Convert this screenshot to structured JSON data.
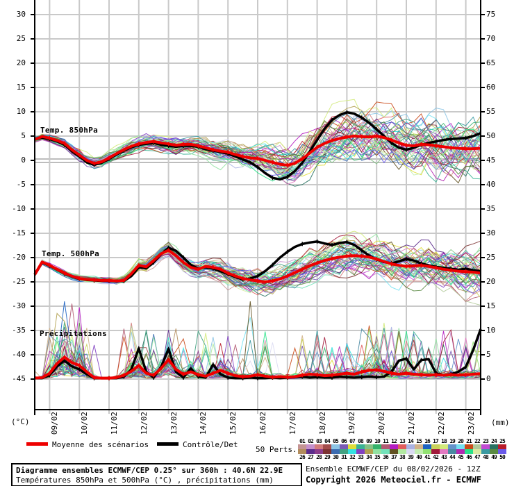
{
  "axes": {
    "unit_left": "(°C)",
    "unit_right": "(mm)",
    "left_ticks": [
      "30",
      "25",
      "20",
      "15",
      "10",
      "5",
      "0",
      "-5",
      "-10",
      "-15",
      "-20",
      "-25",
      "-30",
      "-35",
      "-40",
      "-45"
    ],
    "right_ticks": [
      "75",
      "70",
      "65",
      "60",
      "55",
      "50",
      "45",
      "40",
      "35",
      "30",
      "25",
      "20",
      "15",
      "10",
      "5",
      "0"
    ],
    "x_labels": [
      "09/02",
      "10/02",
      "11/02",
      "12/02",
      "13/02",
      "14/02",
      "15/02",
      "16/02",
      "17/02",
      "18/02",
      "19/02",
      "20/02",
      "21/02",
      "22/02",
      "23/02"
    ]
  },
  "panels": {
    "t850_label": "Temp. 850hPa",
    "t500_label": "Temp. 500hPa",
    "precip_label": "Précipitations"
  },
  "legend": {
    "mean_label": "Moyenne des scénarios",
    "control_label": "Contrôle/Det",
    "perts_label": "50 Perts.",
    "mean_color": "#ee0000",
    "control_color": "#000000",
    "pert_numbers_top": [
      "01",
      "02",
      "03",
      "04",
      "05",
      "06",
      "07",
      "08",
      "09",
      "10",
      "11",
      "12",
      "13",
      "14",
      "15",
      "16",
      "17",
      "18",
      "19",
      "20",
      "21",
      "22",
      "23",
      "24",
      "25"
    ],
    "pert_numbers_bottom": [
      "26",
      "27",
      "28",
      "29",
      "30",
      "31",
      "32",
      "33",
      "34",
      "35",
      "36",
      "37",
      "38",
      "39",
      "40",
      "41",
      "42",
      "43",
      "44",
      "45",
      "46",
      "47",
      "48",
      "49",
      "50"
    ]
  },
  "footer": {
    "line1": "Diagramme ensembles ECMWF/CEP 0.25° sur 360h : 40.6N 22.9E",
    "line2": "Températures 850hPa et 500hPa (°C) , précipitations (mm)",
    "right1": "Ensemble ECMWF/CEP du 08/02/2026 - 12Z",
    "right2": "Copyright 2026 Meteociel.fr - ECMWF"
  },
  "chart_data": {
    "type": "line",
    "title": "Diagramme ensembles ECMWF/CEP 0.25° sur 360h : 40.6N 22.9E",
    "x_step_hours": 6,
    "x_total_hours": 360,
    "x_categories": [
      "09/02",
      "10/02",
      "11/02",
      "12/02",
      "13/02",
      "14/02",
      "15/02",
      "16/02",
      "17/02",
      "18/02",
      "19/02",
      "20/02",
      "21/02",
      "22/02",
      "23/02"
    ],
    "ylim_left_celsius": [
      -45,
      30
    ],
    "ylim_right_mm": [
      0,
      75
    ],
    "grid": true,
    "members_count": 50,
    "series": [
      {
        "name": "T850 moyenne (°C)",
        "color": "#ee0000",
        "values": [
          4.3,
          4.9,
          4.6,
          4.1,
          3.5,
          2.2,
          1.1,
          0.0,
          -0.6,
          -0.3,
          0.5,
          1.4,
          2.2,
          2.9,
          3.4,
          3.7,
          3.9,
          3.6,
          3.4,
          3.1,
          3.3,
          3.3,
          3.0,
          2.6,
          2.2,
          1.9,
          1.7,
          1.2,
          0.8,
          0.5,
          0.4,
          0.0,
          -0.4,
          -0.8,
          -1.0,
          -0.6,
          0.3,
          1.5,
          2.7,
          3.5,
          4.1,
          4.5,
          4.8,
          5.0,
          4.9,
          4.8,
          5.0,
          4.7,
          4.2,
          3.6,
          3.1,
          3.0,
          3.3,
          3.2,
          3.0,
          2.8,
          2.6,
          2.5,
          2.4,
          2.4,
          2.5
        ]
      },
      {
        "name": "T850 contrôle (°C)",
        "color": "#000000",
        "values": [
          4.3,
          4.7,
          4.4,
          3.9,
          3.2,
          1.9,
          0.8,
          -0.4,
          -0.9,
          -0.5,
          0.3,
          1.2,
          2.0,
          2.7,
          3.2,
          3.4,
          3.6,
          3.2,
          3.0,
          2.8,
          3.0,
          3.0,
          2.8,
          2.3,
          2.0,
          1.7,
          1.4,
          0.8,
          0.2,
          -0.4,
          -1.4,
          -2.6,
          -3.6,
          -3.9,
          -3.4,
          -2.2,
          -0.5,
          1.8,
          4.2,
          6.5,
          8.3,
          9.3,
          9.9,
          9.6,
          8.8,
          7.7,
          6.4,
          5.0,
          3.6,
          2.6,
          2.2,
          2.6,
          3.2,
          3.6,
          3.9,
          4.2,
          4.4,
          4.5,
          4.6,
          5.0,
          5.6
        ]
      },
      {
        "name": "T500 moyenne (°C)",
        "color": "#ee0000",
        "values": [
          -23.5,
          -20.9,
          -21.6,
          -22.4,
          -23.2,
          -23.8,
          -24.3,
          -24.5,
          -24.6,
          -24.7,
          -24.7,
          -24.8,
          -24.7,
          -23.3,
          -21.6,
          -21.9,
          -20.6,
          -19.2,
          -18.5,
          -19.6,
          -21.0,
          -22.0,
          -22.4,
          -21.8,
          -22.0,
          -22.4,
          -23.2,
          -23.8,
          -24.3,
          -24.6,
          -24.8,
          -25.0,
          -24.8,
          -24.4,
          -23.8,
          -23.1,
          -22.4,
          -21.7,
          -21.1,
          -20.6,
          -20.2,
          -19.9,
          -19.7,
          -19.6,
          -19.7,
          -19.9,
          -20.3,
          -20.8,
          -21.3,
          -21.6,
          -21.8,
          -21.7,
          -21.6,
          -21.8,
          -22.1,
          -22.4,
          -22.6,
          -22.8,
          -22.9,
          -23.0,
          -23.2
        ]
      },
      {
        "name": "T500 contrôle (°C)",
        "color": "#000000",
        "values": [
          -23.5,
          -21.0,
          -21.7,
          -22.5,
          -23.3,
          -23.9,
          -24.4,
          -24.6,
          -24.7,
          -24.8,
          -24.8,
          -24.9,
          -24.8,
          -23.8,
          -22.0,
          -22.2,
          -21.0,
          -19.3,
          -18.0,
          -18.6,
          -20.0,
          -21.5,
          -22.3,
          -22.0,
          -22.3,
          -22.8,
          -23.4,
          -24.0,
          -24.5,
          -24.3,
          -23.8,
          -22.8,
          -21.5,
          -20.0,
          -18.8,
          -17.8,
          -17.2,
          -16.9,
          -16.7,
          -17.1,
          -17.4,
          -17.0,
          -16.8,
          -17.4,
          -18.5,
          -19.6,
          -20.4,
          -20.9,
          -21.2,
          -20.8,
          -20.3,
          -20.6,
          -21.2,
          -21.6,
          -21.9,
          -22.1,
          -22.3,
          -22.5,
          -22.3,
          -22.6,
          -22.8
        ]
      },
      {
        "name": "Précipitations moyenne (mm)",
        "color": "#ee0000",
        "values": [
          0.2,
          0.3,
          1.2,
          3.2,
          4.5,
          3.4,
          2.8,
          1.5,
          0.3,
          0.2,
          0.2,
          0.3,
          0.8,
          1.6,
          2.8,
          1.2,
          0.8,
          2.2,
          4.0,
          2.0,
          1.0,
          1.5,
          0.9,
          0.6,
          1.2,
          1.8,
          1.2,
          0.7,
          0.5,
          0.6,
          0.9,
          0.6,
          0.4,
          0.5,
          0.4,
          0.5,
          0.8,
          1.0,
          0.9,
          0.7,
          0.8,
          1.0,
          1.2,
          1.0,
          1.5,
          1.8,
          1.9,
          1.6,
          1.2,
          1.0,
          1.2,
          1.0,
          0.9,
          0.8,
          0.9,
          0.8,
          0.9,
          0.8,
          0.9,
          1.0,
          1.1
        ]
      },
      {
        "name": "Précipitations contrôle (mm)",
        "color": "#000000",
        "values": [
          0.2,
          0.2,
          0.8,
          2.6,
          3.8,
          2.6,
          2.0,
          1.0,
          0.2,
          0.2,
          0.2,
          0.2,
          0.5,
          2.0,
          6.3,
          1.5,
          0.3,
          2.5,
          6.2,
          1.5,
          0.3,
          2.2,
          0.5,
          0.3,
          3.0,
          1.0,
          0.3,
          0.2,
          0.2,
          0.3,
          0.2,
          0.2,
          0.3,
          0.2,
          0.3,
          0.4,
          0.5,
          0.3,
          0.4,
          0.3,
          0.3,
          0.5,
          0.4,
          0.3,
          0.4,
          0.5,
          0.4,
          0.5,
          1.5,
          3.8,
          4.2,
          2.0,
          3.9,
          4.1,
          1.2,
          0.8,
          1.0,
          1.5,
          2.5,
          6.0,
          10.3
        ]
      }
    ],
    "spread_halfwidth_knots": {
      "t850": [
        [
          0,
          0.7
        ],
        [
          48,
          1.4
        ],
        [
          96,
          1.6
        ],
        [
          144,
          2.2
        ],
        [
          192,
          3.6
        ],
        [
          240,
          5.2
        ],
        [
          288,
          6.2
        ],
        [
          336,
          6.6
        ],
        [
          360,
          6.8
        ]
      ],
      "t500": [
        [
          0,
          0.5
        ],
        [
          48,
          0.7
        ],
        [
          96,
          1.3
        ],
        [
          144,
          1.9
        ],
        [
          192,
          2.9
        ],
        [
          240,
          3.6
        ],
        [
          288,
          4.2
        ],
        [
          336,
          4.8
        ],
        [
          360,
          5.5
        ]
      ]
    },
    "member_colors": [
      "#c49494",
      "#c690cc",
      "#d47c7c",
      "#a44c4c",
      "#8cc4e4",
      "#7a5ab4",
      "#e0de38",
      "#3ab294",
      "#84c286",
      "#34b26a",
      "#b25a72",
      "#b41cc2",
      "#e25c5c",
      "#aab2e2",
      "#d2b28a",
      "#1c62c2",
      "#cad25a",
      "#d2ea7a",
      "#6492ca",
      "#74e2f2",
      "#ca4a1a",
      "#b2ca9a",
      "#c24ad2",
      "#2a7262",
      "#ba1c2a",
      "#b28c5c",
      "#5c2c8c",
      "#8c3c8c",
      "#7c3232",
      "#3c6cb2",
      "#42a282",
      "#34e2e2",
      "#8242c2",
      "#b2a252",
      "#92e2a2",
      "#72e2ba",
      "#625222",
      "#b2eaa2",
      "#dadaf2",
      "#c2eeb2",
      "#92e272",
      "#a21a3a",
      "#e27ac2",
      "#4a8aa2",
      "#b22ab2",
      "#2ae28a",
      "#dceaa2",
      "#3a9aa2",
      "#5a8a42",
      "#6a5aea"
    ]
  }
}
